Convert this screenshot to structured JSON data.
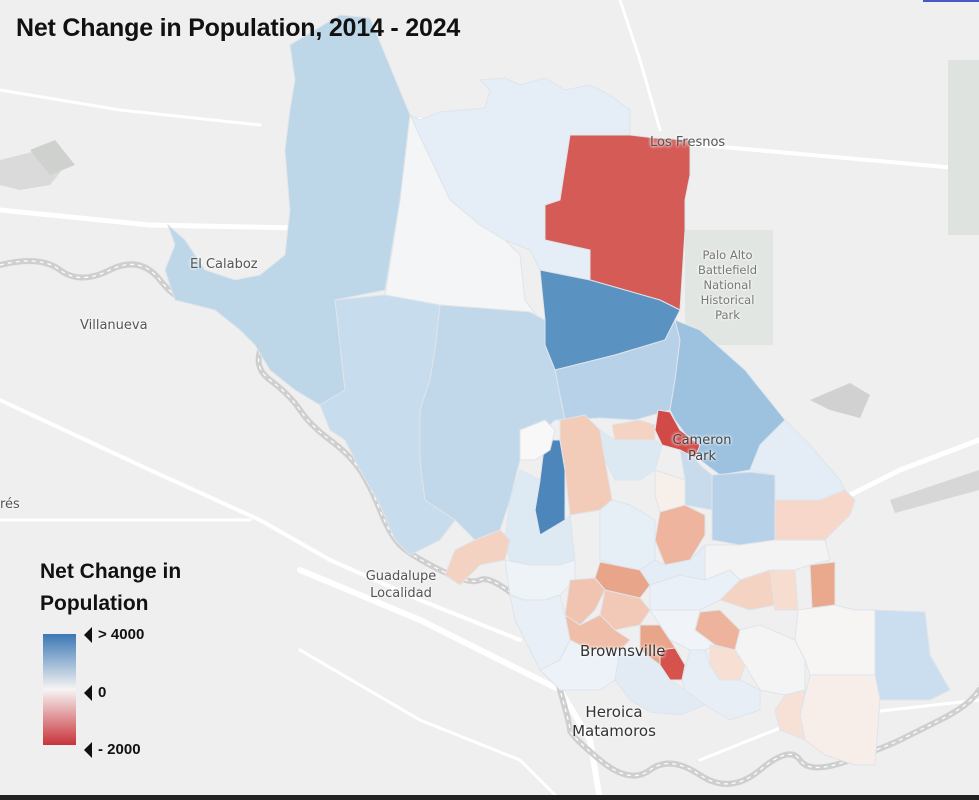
{
  "title": "Net Change in Population, 2014 - 2024",
  "legend": {
    "title_line1": "Net Change in",
    "title_line2": "Population",
    "ticks": [
      "> 4000",
      "0",
      "- 2000"
    ],
    "color_max": "#3b78b5",
    "color_mid": "#f7f4f3",
    "color_min": "#c8333a"
  },
  "places": {
    "el_calaboz": "El Calaboz",
    "villanueva": "Villanueva",
    "los_fresnos": "Los Fresnos",
    "palo_alto_1": "Palo Alto",
    "palo_alto_2": "Battlefield",
    "palo_alto_3": "National",
    "palo_alto_4": "Historical",
    "palo_alto_5": "Park",
    "cameron_park_1": "Cameron",
    "cameron_park_2": "Park",
    "guadalupe_1": "Guadalupe",
    "guadalupe_2": "Localidad",
    "brownsville": "Brownsville",
    "matamoros_1": "Heroica",
    "matamoros_2": "Matamoros",
    "res": "rés"
  },
  "colors": {
    "background": "#efefef",
    "road": "#ffffff",
    "border_line": "#c8c8c8",
    "park": "#e2e6e2"
  }
}
